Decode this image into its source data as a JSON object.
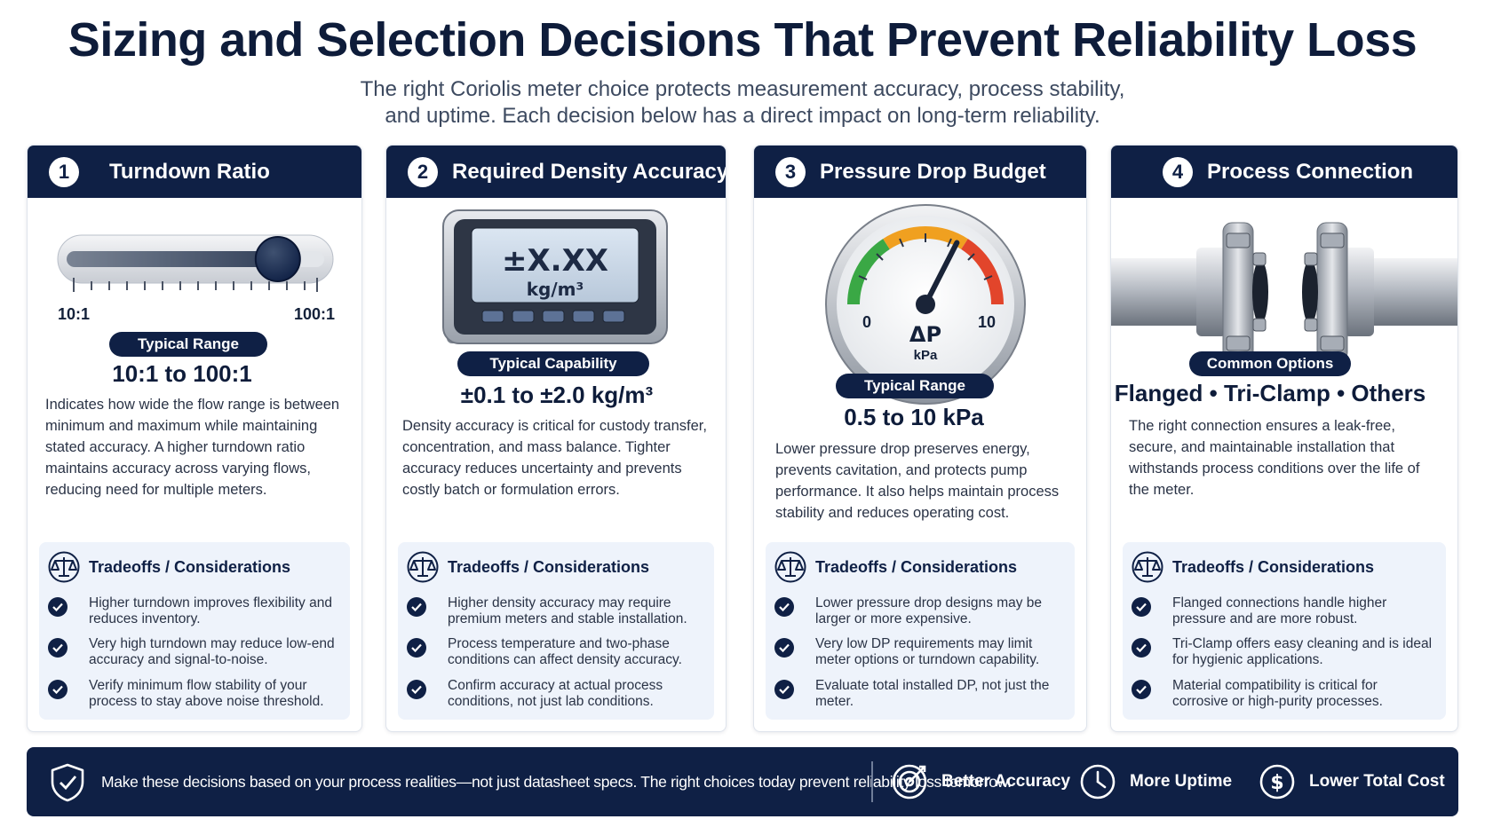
{
  "header": {
    "title": "Sizing and Selection Decisions That Prevent Reliability Loss",
    "subtitle_line1": "The right Coriolis meter choice protects measurement accuracy, process stability,",
    "subtitle_line2": "and uptime. Each decision below has a direct impact on long-term reliability."
  },
  "cards": [
    {
      "number": "1",
      "title": "Turndown Ratio",
      "visual": {
        "scale_min": "10:1",
        "scale_max": "100:1",
        "slider_level": 0.82
      },
      "pill": "Typical Range",
      "range": "10:1 to 100:1",
      "desc": "Indicates how wide the flow range is between minimum and maximum while maintaining stated accuracy. A higher turndown ratio maintains accuracy across varying flows, reducing need for multiple meters.",
      "tradeoffs_title": "Tradeoffs / Considerations",
      "tradeoffs": [
        "Higher turndown improves flexibility and reduces inventory.",
        "Very high turndown may reduce low-end accuracy and signal-to-noise.",
        "Verify minimum flow stability of your process to stay above noise threshold."
      ]
    },
    {
      "number": "2",
      "title": "Required Density Accuracy",
      "visual": {
        "display_value": "±X.XX",
        "display_unit": "kg/m³"
      },
      "pill": "Typical Capability",
      "range": "±0.1 to ±2.0 kg/m³",
      "desc": "Density accuracy is critical for custody transfer, concentration, and mass balance. Tighter accuracy reduces uncertainty and prevents costly batch or formulation errors.",
      "tradeoffs_title": "Tradeoffs / Considerations",
      "tradeoffs": [
        "Higher density accuracy may require premium meters and stable installation.",
        "Process temperature and two-phase conditions can affect density accuracy.",
        "Confirm accuracy at actual process conditions, not just lab conditions."
      ]
    },
    {
      "number": "3",
      "title": "Pressure Drop Budget",
      "visual": {
        "gauge_min": "0",
        "gauge_max": "10",
        "gauge_symbol": "ΔP",
        "gauge_unit": "kPa",
        "needle_value": 6.5
      },
      "pill": "Typical Range",
      "range": "0.5 to 10 kPa",
      "desc": "Lower pressure drop preserves energy, prevents cavitation, and protects pump performance. It also helps maintain process stability and reduces operating cost.",
      "tradeoffs_title": "Tradeoffs / Considerations",
      "tradeoffs": [
        "Lower pressure drop designs may be larger or more expensive.",
        "Very low DP requirements may limit meter options or turndown capability.",
        "Evaluate total installed DP, not just the meter."
      ]
    },
    {
      "number": "4",
      "title": "Process Connection",
      "visual": {},
      "pill": "Common Options",
      "range": "Flanged • Tri-Clamp • Others",
      "desc": "The right connection ensures a leak-free, secure, and maintainable installation that withstands process conditions over the life of the meter.",
      "tradeoffs_title": "Tradeoffs / Considerations",
      "tradeoffs": [
        "Flanged connections handle higher pressure and are more robust.",
        "Tri-Clamp offers easy cleaning and is ideal for hygienic applications.",
        "Material compatibility is critical for corrosive or high-purity processes."
      ]
    }
  ],
  "footer": {
    "text": "Make these decisions based on your process realities—not just datasheet specs. The right choices today prevent reliability loss tomorrow.",
    "benefits": [
      {
        "label": "Better Accuracy",
        "icon": "target-icon"
      },
      {
        "label": "More Uptime",
        "icon": "clock-icon"
      },
      {
        "label": "Lower Total Cost",
        "icon": "dollar-icon"
      }
    ]
  },
  "colors": {
    "navy": "#0f2045",
    "panel": "#eef3fb",
    "gauge_green": "#3aa845",
    "gauge_orange": "#f0a020",
    "gauge_red": "#e2452b"
  }
}
